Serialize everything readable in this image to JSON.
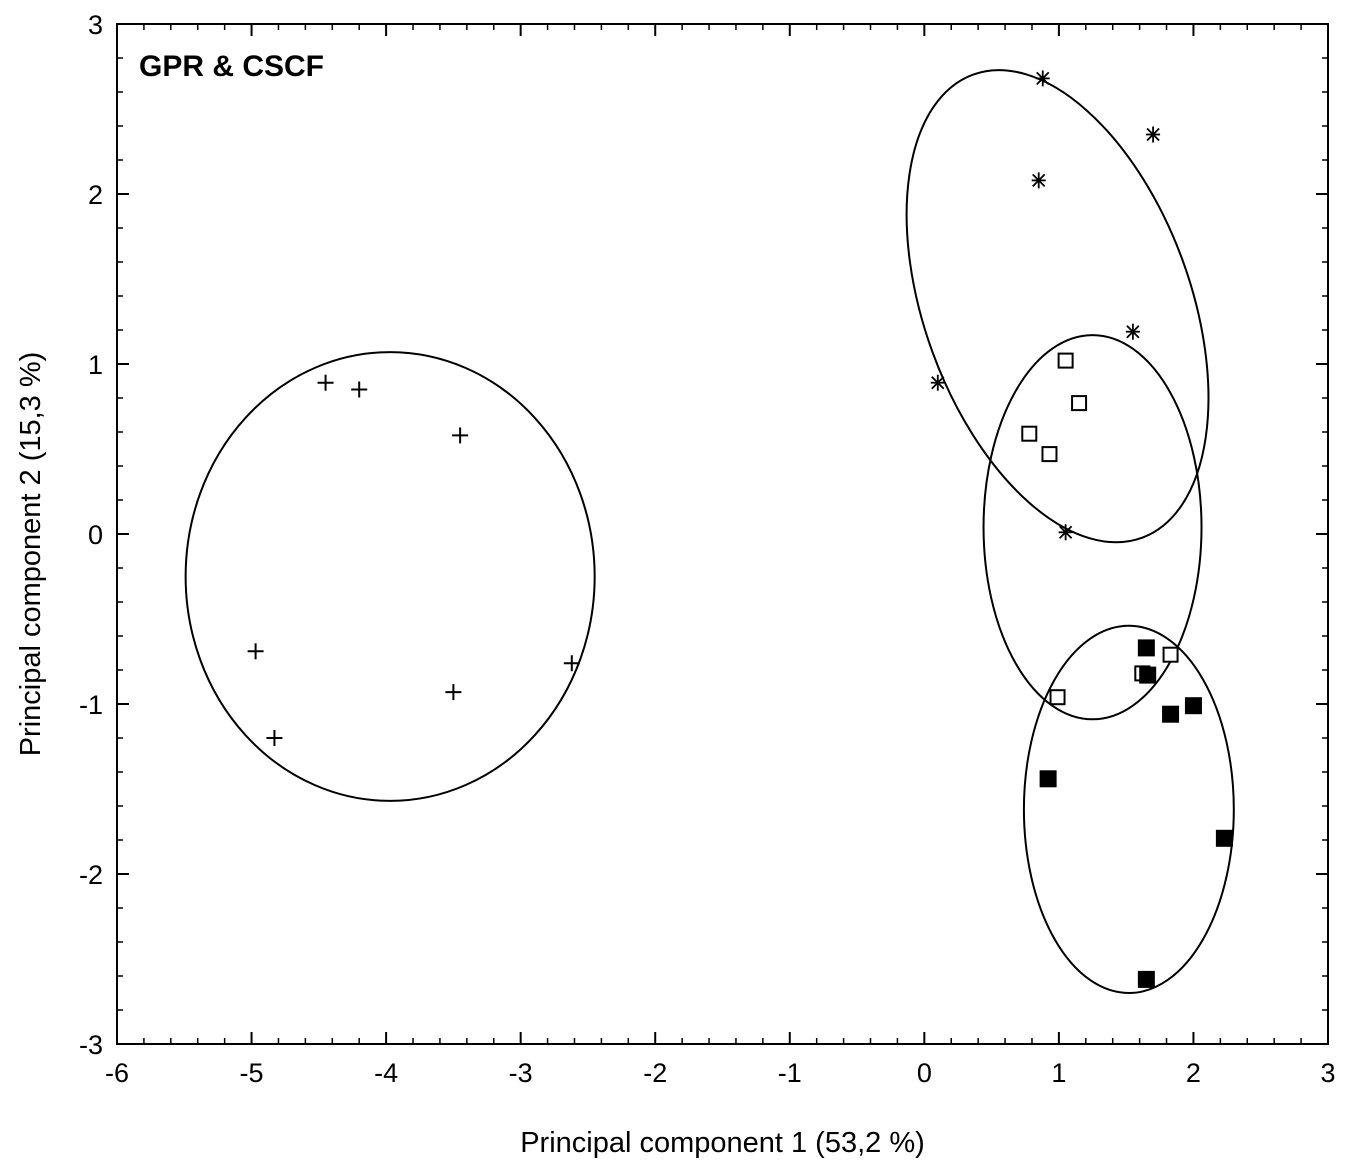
{
  "chart_data": {
    "type": "scatter",
    "title": "GPR & CSCF",
    "xlabel": "Principal component 1 (53,2 %)",
    "ylabel": "Principal component 2 (15,3 %)",
    "xlim": [
      -6,
      3
    ],
    "ylim": [
      -3,
      3
    ],
    "xticks": [
      -6,
      -5,
      -4,
      -3,
      -2,
      -1,
      0,
      1,
      2,
      3
    ],
    "yticks": [
      -3,
      -2,
      -1,
      0,
      1,
      2,
      3
    ],
    "xminor_step": 0.2,
    "yminor_step": 0.2,
    "grid": false,
    "legend": "none",
    "colors": {
      "marker": "#000000",
      "ellipse": "#000000",
      "axis": "#000000"
    },
    "series": [
      {
        "marker": "plus",
        "points": [
          [
            -4.45,
            0.89
          ],
          [
            -4.2,
            0.85
          ],
          [
            -3.45,
            0.58
          ],
          [
            -4.97,
            -0.69
          ],
          [
            -4.83,
            -1.2
          ],
          [
            -3.5,
            -0.93
          ],
          [
            -2.62,
            -0.76
          ]
        ]
      },
      {
        "marker": "asterisk",
        "points": [
          [
            0.88,
            2.68
          ],
          [
            1.7,
            2.35
          ],
          [
            0.85,
            2.08
          ],
          [
            1.55,
            1.19
          ],
          [
            0.1,
            0.89
          ],
          [
            1.05,
            0.01
          ]
        ]
      },
      {
        "marker": "open-square",
        "points": [
          [
            1.05,
            1.02
          ],
          [
            1.15,
            0.77
          ],
          [
            0.78,
            0.59
          ],
          [
            0.93,
            0.47
          ],
          [
            1.62,
            -0.82
          ],
          [
            1.83,
            -0.71
          ],
          [
            0.99,
            -0.96
          ]
        ]
      },
      {
        "marker": "filled-square",
        "points": [
          [
            1.65,
            -0.67
          ],
          [
            1.66,
            -0.83
          ],
          [
            1.83,
            -1.06
          ],
          [
            2.0,
            -1.01
          ],
          [
            0.92,
            -1.44
          ],
          [
            2.23,
            -1.79
          ],
          [
            1.65,
            -2.62
          ]
        ]
      }
    ],
    "ellipses": [
      {
        "cx": -3.97,
        "cy": -0.25,
        "rx": 1.52,
        "ry": 1.32,
        "angle": 0
      },
      {
        "cx": 0.99,
        "cy": 1.34,
        "rx": 0.99,
        "ry": 1.45,
        "angle": 20
      },
      {
        "cx": 1.25,
        "cy": 0.04,
        "rx": 0.81,
        "ry": 1.13,
        "angle": 0
      },
      {
        "cx": 1.52,
        "cy": -1.62,
        "rx": 0.78,
        "ry": 1.08,
        "angle": 0
      }
    ]
  }
}
